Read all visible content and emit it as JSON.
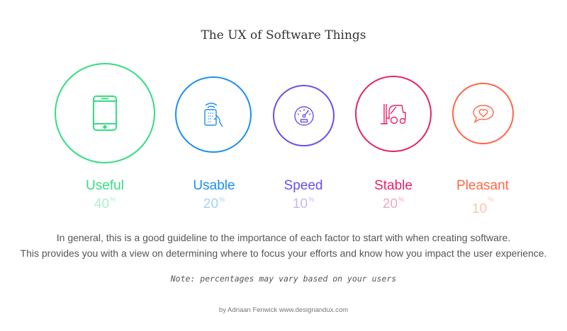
{
  "title": "The UX of Software Things",
  "factors": [
    {
      "label": "Useful",
      "percent": "40",
      "unit": "%",
      "icon": "smartphone-icon",
      "color": "#34de80"
    },
    {
      "label": "Usable",
      "percent": "20",
      "unit": "%",
      "icon": "remote-control-hand-icon",
      "color": "#1b8ff0"
    },
    {
      "label": "Speed",
      "percent": "10",
      "unit": "%",
      "icon": "speedometer-icon",
      "color": "#6650ee"
    },
    {
      "label": "Stable",
      "percent": "20",
      "unit": "%",
      "icon": "forklift-icon",
      "color": "#e5226c"
    },
    {
      "label": "Pleasant",
      "percent": "10",
      "unit": "%",
      "icon": "heart-speech-bubble-icon",
      "color": "#ff6646"
    }
  ],
  "description": {
    "line1": "In general, this is a good guideline to the importance of each factor to start with when creating software.",
    "line2": "This provides you with a view on determining where to focus your efforts and know how you impact the user experience."
  },
  "note": "Note: percentages may vary based on your users",
  "credit": "by Adriaan Fenwick www.designandux.com"
}
